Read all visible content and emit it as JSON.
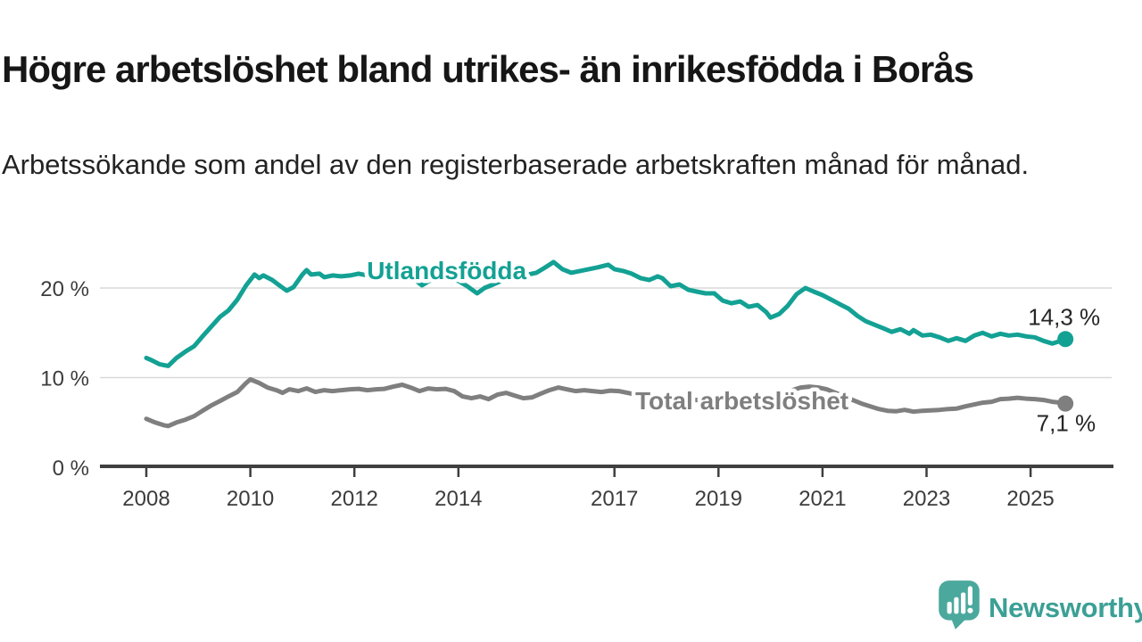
{
  "header": {
    "title": "Högre arbetslöshet bland utrikes- än inrikesfödda i Borås",
    "subtitle": "Arbetssökande som andel av den registerbaserade arbetskraften månad för månad."
  },
  "chart_data": {
    "type": "line",
    "title": "Högre arbetslöshet bland utrikes- än inrikesfödda i Borås",
    "subtitle": "Arbetssökande som andel av den registerbaserade arbetskraften månad för månad.",
    "unit": "%",
    "grid": "horizontal",
    "legend": "inline-labels",
    "x_axis": {
      "range": [
        2008,
        2025.75
      ],
      "tick_years": [
        2008,
        2010,
        2012,
        2014,
        2017,
        2019,
        2021,
        2023,
        2025
      ],
      "tick_labels": [
        "2008",
        "2010",
        "2012",
        "2014",
        "2017",
        "2019",
        "2021",
        "2023",
        "2025"
      ]
    },
    "y_axis": {
      "range": [
        0,
        24
      ],
      "ticks": [
        {
          "value": 0,
          "label": "0 %"
        },
        {
          "value": 10,
          "label": "10 %"
        },
        {
          "value": 20,
          "label": "20 %"
        }
      ]
    },
    "series": [
      {
        "id": "total",
        "name": "Total arbetslöshet",
        "color": "#7f7f7f",
        "end_value": 7.1,
        "end_label": "7,1 %",
        "label_anchor": {
          "t": 2017.4,
          "v": 6.45
        },
        "points": [
          [
            2008.0,
            5.4
          ],
          [
            2008.17,
            5.0
          ],
          [
            2008.33,
            4.7
          ],
          [
            2008.42,
            4.6
          ],
          [
            2008.58,
            5.0
          ],
          [
            2008.75,
            5.3
          ],
          [
            2008.92,
            5.7
          ],
          [
            2009.08,
            6.3
          ],
          [
            2009.25,
            6.9
          ],
          [
            2009.42,
            7.4
          ],
          [
            2009.58,
            7.9
          ],
          [
            2009.75,
            8.4
          ],
          [
            2009.92,
            9.4
          ],
          [
            2010.0,
            9.8
          ],
          [
            2010.17,
            9.4
          ],
          [
            2010.33,
            8.9
          ],
          [
            2010.5,
            8.6
          ],
          [
            2010.62,
            8.3
          ],
          [
            2010.75,
            8.7
          ],
          [
            2010.92,
            8.5
          ],
          [
            2011.08,
            8.8
          ],
          [
            2011.25,
            8.4
          ],
          [
            2011.42,
            8.6
          ],
          [
            2011.58,
            8.5
          ],
          [
            2011.75,
            8.6
          ],
          [
            2011.92,
            8.7
          ],
          [
            2012.08,
            8.75
          ],
          [
            2012.25,
            8.6
          ],
          [
            2012.42,
            8.7
          ],
          [
            2012.58,
            8.75
          ],
          [
            2012.75,
            9.0
          ],
          [
            2012.92,
            9.2
          ],
          [
            2013.08,
            8.9
          ],
          [
            2013.25,
            8.5
          ],
          [
            2013.42,
            8.8
          ],
          [
            2013.58,
            8.7
          ],
          [
            2013.75,
            8.75
          ],
          [
            2013.92,
            8.5
          ],
          [
            2014.08,
            7.9
          ],
          [
            2014.25,
            7.7
          ],
          [
            2014.42,
            7.9
          ],
          [
            2014.58,
            7.6
          ],
          [
            2014.75,
            8.1
          ],
          [
            2014.92,
            8.3
          ],
          [
            2015.08,
            8.0
          ],
          [
            2015.25,
            7.7
          ],
          [
            2015.42,
            7.8
          ],
          [
            2015.58,
            8.2
          ],
          [
            2015.75,
            8.6
          ],
          [
            2015.92,
            8.9
          ],
          [
            2016.08,
            8.7
          ],
          [
            2016.25,
            8.5
          ],
          [
            2016.42,
            8.6
          ],
          [
            2016.58,
            8.5
          ],
          [
            2016.75,
            8.4
          ],
          [
            2016.92,
            8.55
          ],
          [
            2017.08,
            8.5
          ],
          [
            2017.25,
            8.3
          ],
          [
            2017.42,
            8.1
          ],
          [
            2017.58,
            8.1
          ],
          [
            2017.75,
            8.0
          ],
          [
            2017.92,
            7.9
          ],
          [
            2018.08,
            7.8
          ],
          [
            2018.25,
            7.7
          ],
          [
            2018.42,
            7.6
          ],
          [
            2018.58,
            7.5
          ],
          [
            2018.75,
            7.4
          ],
          [
            2018.92,
            7.3
          ],
          [
            2019.08,
            7.2
          ],
          [
            2019.25,
            7.1
          ],
          [
            2019.42,
            7.0
          ],
          [
            2019.58,
            7.0
          ],
          [
            2019.75,
            6.9
          ],
          [
            2019.92,
            6.9
          ],
          [
            2020.08,
            7.2
          ],
          [
            2020.25,
            8.0
          ],
          [
            2020.42,
            8.6
          ],
          [
            2020.58,
            8.9
          ],
          [
            2020.75,
            9.0
          ],
          [
            2020.92,
            8.9
          ],
          [
            2021.08,
            8.7
          ],
          [
            2021.25,
            8.3
          ],
          [
            2021.42,
            7.9
          ],
          [
            2021.58,
            7.5
          ],
          [
            2021.75,
            7.1
          ],
          [
            2021.92,
            6.8
          ],
          [
            2022.08,
            6.5
          ],
          [
            2022.25,
            6.3
          ],
          [
            2022.42,
            6.25
          ],
          [
            2022.58,
            6.4
          ],
          [
            2022.75,
            6.2
          ],
          [
            2022.92,
            6.3
          ],
          [
            2023.08,
            6.35
          ],
          [
            2023.25,
            6.4
          ],
          [
            2023.42,
            6.5
          ],
          [
            2023.58,
            6.55
          ],
          [
            2023.75,
            6.8
          ],
          [
            2023.92,
            7.0
          ],
          [
            2024.08,
            7.2
          ],
          [
            2024.25,
            7.3
          ],
          [
            2024.42,
            7.6
          ],
          [
            2024.58,
            7.65
          ],
          [
            2024.75,
            7.75
          ],
          [
            2024.92,
            7.65
          ],
          [
            2025.08,
            7.6
          ],
          [
            2025.25,
            7.5
          ],
          [
            2025.42,
            7.3
          ],
          [
            2025.58,
            7.2
          ],
          [
            2025.67,
            7.1
          ]
        ]
      },
      {
        "id": "utlandsfodda",
        "name": "Utlandsfödda",
        "color": "#13a194",
        "end_value": 14.3,
        "end_label": "14,3 %",
        "label_anchor": {
          "t": 2012.24,
          "v": 21.0
        },
        "points": [
          [
            2008.0,
            12.2
          ],
          [
            2008.08,
            12.0
          ],
          [
            2008.25,
            11.5
          ],
          [
            2008.42,
            11.3
          ],
          [
            2008.58,
            12.2
          ],
          [
            2008.75,
            12.9
          ],
          [
            2008.92,
            13.5
          ],
          [
            2009.08,
            14.6
          ],
          [
            2009.25,
            15.7
          ],
          [
            2009.42,
            16.8
          ],
          [
            2009.58,
            17.5
          ],
          [
            2009.75,
            18.7
          ],
          [
            2009.92,
            20.3
          ],
          [
            2010.08,
            21.5
          ],
          [
            2010.17,
            21.1
          ],
          [
            2010.25,
            21.4
          ],
          [
            2010.42,
            20.9
          ],
          [
            2010.58,
            20.2
          ],
          [
            2010.7,
            19.7
          ],
          [
            2010.83,
            20.1
          ],
          [
            2011.0,
            21.5
          ],
          [
            2011.08,
            22.0
          ],
          [
            2011.17,
            21.5
          ],
          [
            2011.33,
            21.6
          ],
          [
            2011.42,
            21.2
          ],
          [
            2011.58,
            21.4
          ],
          [
            2011.75,
            21.3
          ],
          [
            2011.92,
            21.4
          ],
          [
            2012.08,
            21.6
          ],
          [
            2012.25,
            21.4
          ],
          [
            2012.42,
            21.7
          ],
          [
            2012.58,
            21.4
          ],
          [
            2012.75,
            21.5
          ],
          [
            2012.92,
            21.6
          ],
          [
            2013.08,
            21.3
          ],
          [
            2013.3,
            20.3
          ],
          [
            2013.5,
            21.0
          ],
          [
            2013.67,
            21.2
          ],
          [
            2013.83,
            21.0
          ],
          [
            2014.0,
            20.8
          ],
          [
            2014.17,
            20.2
          ],
          [
            2014.36,
            19.4
          ],
          [
            2014.5,
            20.0
          ],
          [
            2014.67,
            20.4
          ],
          [
            2014.83,
            20.8
          ],
          [
            2015.0,
            21.1
          ],
          [
            2015.25,
            21.4
          ],
          [
            2015.5,
            21.7
          ],
          [
            2015.67,
            22.3
          ],
          [
            2015.83,
            22.9
          ],
          [
            2016.0,
            22.1
          ],
          [
            2016.17,
            21.7
          ],
          [
            2016.42,
            22.0
          ],
          [
            2016.67,
            22.3
          ],
          [
            2016.88,
            22.6
          ],
          [
            2017.0,
            22.1
          ],
          [
            2017.17,
            21.9
          ],
          [
            2017.33,
            21.6
          ],
          [
            2017.5,
            21.1
          ],
          [
            2017.67,
            20.9
          ],
          [
            2017.83,
            21.3
          ],
          [
            2017.92,
            21.1
          ],
          [
            2018.08,
            20.2
          ],
          [
            2018.25,
            20.4
          ],
          [
            2018.42,
            19.8
          ],
          [
            2018.58,
            19.6
          ],
          [
            2018.75,
            19.4
          ],
          [
            2018.92,
            19.4
          ],
          [
            2019.08,
            18.6
          ],
          [
            2019.25,
            18.3
          ],
          [
            2019.42,
            18.5
          ],
          [
            2019.58,
            17.9
          ],
          [
            2019.75,
            18.1
          ],
          [
            2019.92,
            17.3
          ],
          [
            2020.0,
            16.7
          ],
          [
            2020.17,
            17.1
          ],
          [
            2020.33,
            18.0
          ],
          [
            2020.5,
            19.3
          ],
          [
            2020.67,
            20.0
          ],
          [
            2020.83,
            19.6
          ],
          [
            2021.0,
            19.2
          ],
          [
            2021.17,
            18.7
          ],
          [
            2021.33,
            18.2
          ],
          [
            2021.5,
            17.7
          ],
          [
            2021.67,
            16.9
          ],
          [
            2021.83,
            16.3
          ],
          [
            2022.0,
            15.9
          ],
          [
            2022.17,
            15.5
          ],
          [
            2022.33,
            15.1
          ],
          [
            2022.5,
            15.4
          ],
          [
            2022.67,
            14.9
          ],
          [
            2022.75,
            15.3
          ],
          [
            2022.92,
            14.7
          ],
          [
            2023.08,
            14.8
          ],
          [
            2023.25,
            14.5
          ],
          [
            2023.42,
            14.1
          ],
          [
            2023.58,
            14.4
          ],
          [
            2023.75,
            14.1
          ],
          [
            2023.92,
            14.7
          ],
          [
            2024.08,
            15.0
          ],
          [
            2024.25,
            14.6
          ],
          [
            2024.42,
            14.9
          ],
          [
            2024.58,
            14.7
          ],
          [
            2024.75,
            14.8
          ],
          [
            2024.92,
            14.6
          ],
          [
            2025.08,
            14.5
          ],
          [
            2025.25,
            14.1
          ],
          [
            2025.42,
            13.8
          ],
          [
            2025.58,
            14.1
          ],
          [
            2025.67,
            14.3
          ]
        ]
      }
    ]
  },
  "footer": {
    "brand": "Newsworthy",
    "logo_icon": "newsworthy-speech-bubble-barchart-icon",
    "brand_color": "#3ba095",
    "logo_fill": "#4ba89d"
  },
  "colors": {
    "background": "#ffffff",
    "title_text": "#161616",
    "subtitle_text": "#232323",
    "axis_text": "#3c3c3c",
    "axis_line": "#3f3f3f",
    "gridline": "#d9d9d9",
    "value_label_text": "#262626",
    "series_utlandsfodda": "#13a194",
    "series_total": "#7f7f7f"
  }
}
